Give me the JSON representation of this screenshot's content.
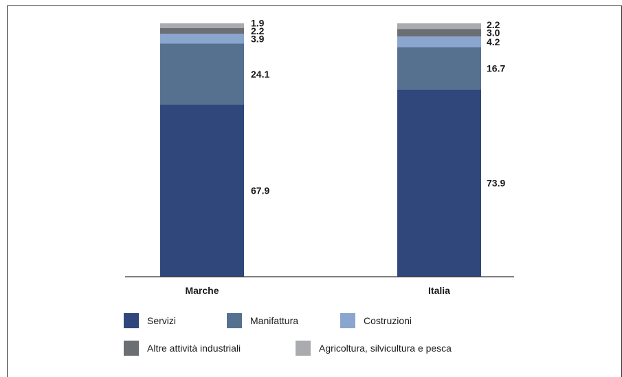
{
  "chart_data": {
    "type": "bar",
    "stacked": true,
    "categories": [
      "Marche",
      "Italia"
    ],
    "ylim": [
      0,
      100
    ],
    "grid": false,
    "legend_position": "bottom",
    "series": [
      {
        "name": "Servizi",
        "color": "#2f477a",
        "values": [
          67.9,
          73.9
        ],
        "labels": [
          "67.9",
          "73.9"
        ]
      },
      {
        "name": "Manifattura",
        "color": "#56708f",
        "values": [
          24.1,
          16.7
        ],
        "labels": [
          "24.1",
          "16.7"
        ]
      },
      {
        "name": "Costruzioni",
        "color": "#8aa6cf",
        "values": [
          3.9,
          4.2
        ],
        "labels": [
          "3.9",
          "4.2"
        ]
      },
      {
        "name": "Altre attività industriali",
        "color": "#6b6e72",
        "values": [
          2.2,
          3.0
        ],
        "labels": [
          "2.2",
          "3.0"
        ]
      },
      {
        "name": "Agricoltura, silvicultura e pesca",
        "color": "#a9abae",
        "values": [
          1.9,
          2.2
        ],
        "labels": [
          "1.9",
          "2.2"
        ]
      }
    ]
  }
}
